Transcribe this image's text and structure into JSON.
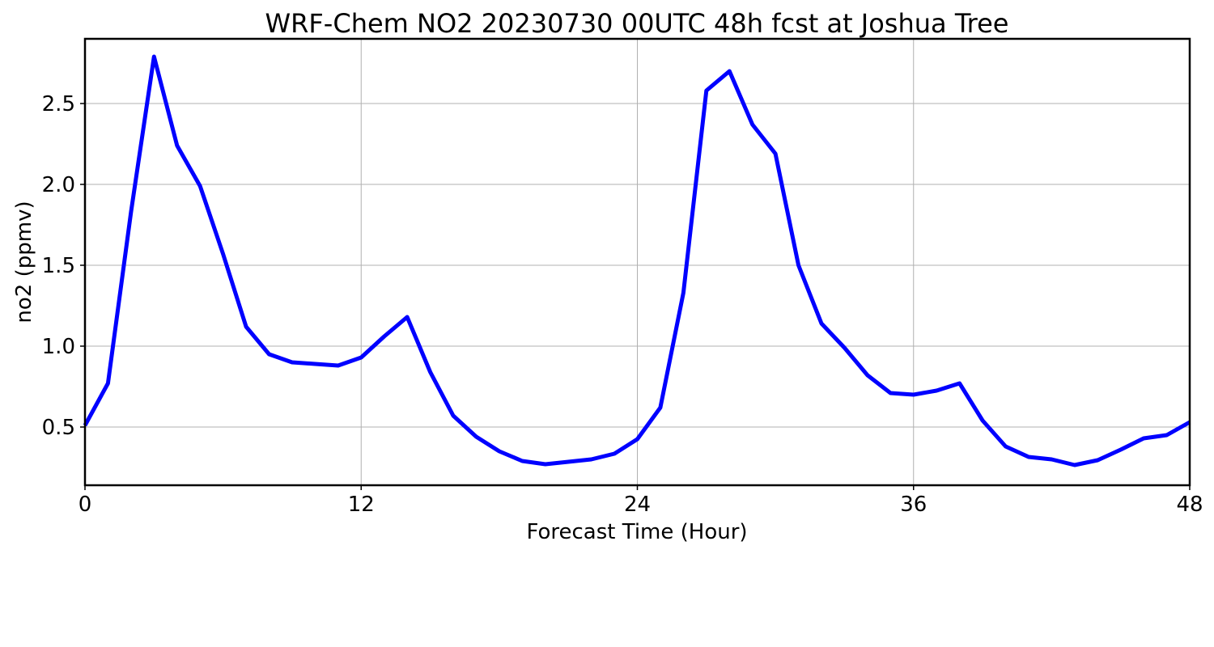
{
  "chart_data": {
    "type": "line",
    "title": "WRF-Chem NO2  20230730 00UTC 48h fcst at Joshua Tree",
    "xlabel": "Forecast Time (Hour)",
    "ylabel": "no2  (ppmv)",
    "xlim": [
      0,
      48
    ],
    "ylim": [
      0.14,
      2.9
    ],
    "xticks": [
      0,
      12,
      24,
      36,
      48
    ],
    "xtick_labels": [
      "0",
      "12",
      "24",
      "36",
      "48"
    ],
    "yticks": [
      0.5,
      1.0,
      1.5,
      2.0,
      2.5
    ],
    "ytick_labels": [
      "0.5",
      "1.0",
      "1.5",
      "2.0",
      "2.5"
    ],
    "grid": true,
    "line_color": "#0000ff",
    "series": [
      {
        "x": [
          0,
          1,
          2,
          3,
          4,
          5,
          6,
          7,
          8,
          9,
          10,
          11,
          12,
          13,
          14,
          15,
          16,
          17,
          18,
          19,
          20,
          21,
          22,
          23,
          24,
          25,
          26,
          27,
          28,
          29,
          30,
          31,
          32,
          33,
          34,
          35,
          36,
          37,
          38,
          39,
          40,
          41,
          42,
          43,
          44,
          45,
          46,
          47,
          48
        ],
        "values": [
          0.51,
          0.77,
          1.83,
          2.79,
          2.24,
          1.99,
          1.57,
          1.12,
          0.95,
          0.9,
          0.89,
          0.88,
          0.93,
          1.06,
          1.18,
          0.84,
          0.57,
          0.44,
          0.35,
          0.29,
          0.27,
          0.285,
          0.3,
          0.335,
          0.425,
          0.62,
          1.33,
          2.58,
          2.7,
          2.37,
          2.19,
          1.5,
          1.14,
          0.99,
          0.82,
          0.71,
          0.7,
          0.725,
          0.77,
          0.54,
          0.38,
          0.315,
          0.3,
          0.265,
          0.295,
          0.36,
          0.43,
          0.45,
          0.53
        ]
      }
    ]
  }
}
